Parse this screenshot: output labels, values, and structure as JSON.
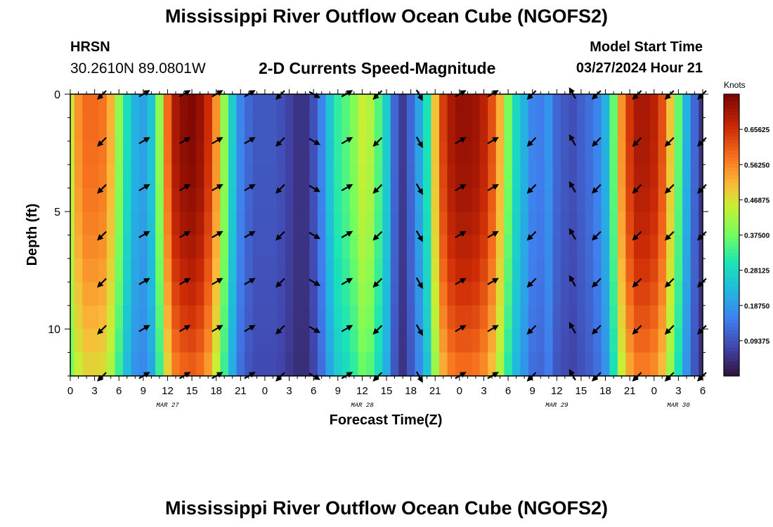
{
  "page": {
    "title": "Mississippi River Outflow Ocean Cube (NGOFS2)",
    "station_name": "HRSN",
    "station_coords": "30.2610N  89.0801W",
    "plot_title": "2-D Currents Speed-Magnitude",
    "model_start_label": "Model Start Time",
    "model_start_value": "03/27/2024 Hour 21",
    "bottom_title": "Mississippi River Outflow Ocean Cube (NGOFS2)"
  },
  "chart_data": {
    "type": "heatmap",
    "title": "2-D Currents Speed-Magnitude",
    "xlabel": "Forecast Time(Z)",
    "ylabel": "Depth (ft)",
    "xlim_hours": [
      0,
      78
    ],
    "ylim_ft": [
      0,
      12
    ],
    "y_inverted": true,
    "x_tick_labels": [
      "0",
      "3",
      "6",
      "9",
      "12",
      "15",
      "18",
      "21",
      "0",
      "3",
      "6",
      "9",
      "12",
      "15",
      "18",
      "21",
      "0",
      "3",
      "6",
      "9",
      "12",
      "15",
      "18",
      "21",
      "0",
      "3",
      "6"
    ],
    "date_labels": [
      {
        "text": "MAR 27",
        "hour": 12
      },
      {
        "text": "MAR 28",
        "hour": 36
      },
      {
        "text": "MAR 29",
        "hour": 60
      },
      {
        "text": "MAR 30",
        "hour": 75
      }
    ],
    "y_ticks": [
      0,
      5,
      10
    ],
    "colorbar": {
      "label": "Knots",
      "ticks": [
        "0.65625",
        "0.56250",
        "0.46875",
        "0.37500",
        "0.28125",
        "0.18750",
        "0.09375"
      ],
      "min": 0.0,
      "max": 0.75
    },
    "hours": [
      0,
      1,
      2,
      3,
      4,
      5,
      6,
      7,
      8,
      9,
      10,
      11,
      12,
      13,
      14,
      15,
      16,
      17,
      18,
      19,
      20,
      21,
      22,
      23,
      24,
      25,
      26,
      27,
      28,
      29,
      30,
      31,
      32,
      33,
      34,
      35,
      36,
      37,
      38,
      39,
      40,
      41,
      42,
      43,
      44,
      45,
      46,
      47,
      48,
      49,
      50,
      51,
      52,
      53,
      54,
      55,
      56,
      57,
      58,
      59,
      60,
      61,
      62,
      63,
      64,
      65,
      66,
      67,
      68,
      69,
      70,
      71,
      72,
      73,
      74,
      75,
      76,
      77,
      78
    ],
    "surface_speed_knots": [
      0.46,
      0.55,
      0.59,
      0.59,
      0.58,
      0.52,
      0.4,
      0.29,
      0.22,
      0.2,
      0.25,
      0.4,
      0.59,
      0.7,
      0.73,
      0.74,
      0.72,
      0.66,
      0.55,
      0.4,
      0.26,
      0.16,
      0.12,
      0.1,
      0.1,
      0.1,
      0.09,
      0.07,
      0.05,
      0.05,
      0.09,
      0.16,
      0.25,
      0.32,
      0.35,
      0.39,
      0.45,
      0.43,
      0.35,
      0.26,
      0.12,
      0.06,
      0.12,
      0.2,
      0.3,
      0.5,
      0.64,
      0.7,
      0.72,
      0.72,
      0.71,
      0.68,
      0.62,
      0.52,
      0.38,
      0.28,
      0.22,
      0.16,
      0.15,
      0.18,
      0.12,
      0.1,
      0.09,
      0.11,
      0.13,
      0.16,
      0.22,
      0.36,
      0.55,
      0.65,
      0.7,
      0.7,
      0.68,
      0.62,
      0.5,
      0.36,
      0.22,
      0.12,
      0.05
    ],
    "vectors": {
      "depths_ft": [
        0,
        2,
        4,
        6,
        8,
        10,
        12
      ],
      "hours": [
        4,
        9,
        14,
        18,
        22,
        26,
        30,
        34,
        38,
        43,
        48,
        52,
        57,
        62,
        65,
        70,
        74,
        78
      ],
      "direction_deg_by_hour": [
        225,
        60,
        60,
        60,
        60,
        225,
        120,
        60,
        225,
        150,
        60,
        60,
        225,
        330,
        225,
        225,
        225,
        225
      ]
    }
  }
}
